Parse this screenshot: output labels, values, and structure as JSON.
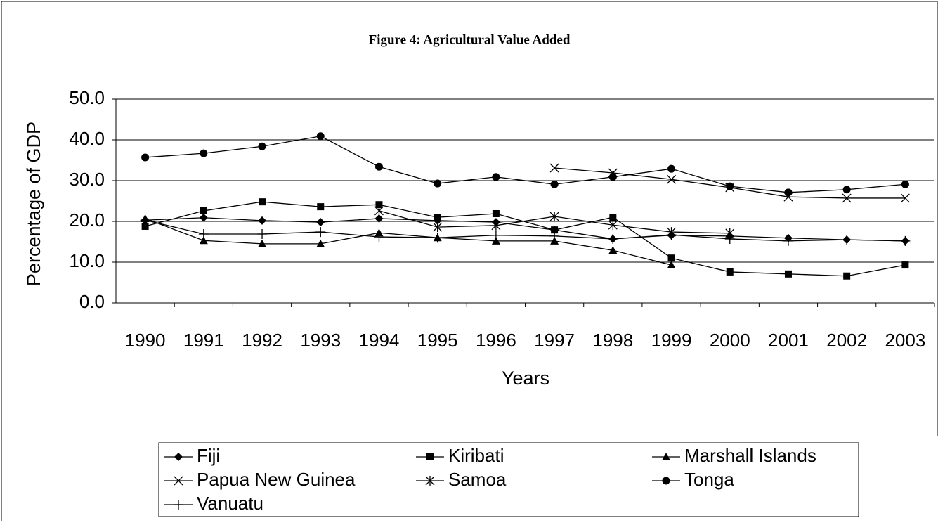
{
  "chart_data": {
    "type": "line",
    "title": "Figure 4: Agricultural Value Added",
    "x_label": "Years",
    "y_label": "Percentage of GDP",
    "categories": [
      "1990",
      "1991",
      "1992",
      "1993",
      "1994",
      "1995",
      "1996",
      "1997",
      "1998",
      "1999",
      "2000",
      "2001",
      "2002",
      "2003"
    ],
    "ylim": [
      0,
      50
    ],
    "yticks": [
      {
        "value": 0,
        "label": "0.0"
      },
      {
        "value": 10,
        "label": "10.0"
      },
      {
        "value": 20,
        "label": "20.0"
      },
      {
        "value": 30,
        "label": "30.0"
      },
      {
        "value": 40,
        "label": "40.0"
      },
      {
        "value": 50,
        "label": "50.0"
      }
    ],
    "grid": true,
    "series": [
      {
        "name": "Fiji",
        "color": "#000000",
        "marker": "diamond",
        "values": [
          20.3,
          20.9,
          20.2,
          19.8,
          20.7,
          20.2,
          19.8,
          17.9,
          15.7,
          16.6,
          16.4,
          15.9,
          15.5,
          15.2
        ]
      },
      {
        "name": "Kiribati",
        "color": "#000000",
        "marker": "square",
        "values": [
          18.8,
          22.6,
          24.8,
          23.6,
          24.1,
          21.0,
          21.9,
          17.9,
          21.0,
          11.0,
          7.6,
          7.1,
          6.6,
          9.3
        ]
      },
      {
        "name": "Marshall Islands",
        "color": "#000000",
        "marker": "triangle",
        "values": [
          20.7,
          15.3,
          14.5,
          14.5,
          17.2,
          16.0,
          15.2,
          15.2,
          12.9,
          9.3,
          null,
          null,
          null,
          null
        ]
      },
      {
        "name": "Papua New Guinea",
        "color": "#000000",
        "marker": "x",
        "values": [
          null,
          null,
          null,
          null,
          null,
          null,
          null,
          33.1,
          31.9,
          30.3,
          28.3,
          26.0,
          25.7,
          25.7
        ]
      },
      {
        "name": "Samoa",
        "color": "#000000",
        "marker": "asterisk",
        "values": [
          null,
          null,
          null,
          null,
          22.6,
          18.6,
          19.0,
          21.2,
          19.1,
          17.4,
          17.1,
          null,
          null,
          null
        ]
      },
      {
        "name": "Tonga",
        "color": "#000000",
        "marker": "circle",
        "values": [
          35.7,
          36.7,
          38.4,
          40.9,
          33.4,
          29.3,
          30.9,
          29.1,
          30.9,
          32.9,
          28.6,
          27.1,
          27.8,
          29.1
        ]
      },
      {
        "name": "Vanuatu",
        "color": "#000000",
        "marker": "plus",
        "values": [
          20.3,
          16.9,
          16.9,
          17.4,
          16.2,
          16.0,
          16.6,
          16.4,
          15.7,
          16.7,
          15.7,
          15.2,
          15.5,
          15.2
        ]
      }
    ]
  }
}
